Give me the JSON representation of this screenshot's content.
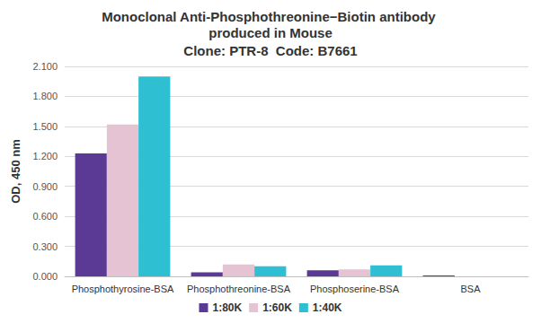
{
  "chart_data": {
    "type": "bar",
    "title": "Monoclonal Anti-Phosphothreonine−Biotin antibody produced in Mouse",
    "subtitle": "Clone: PTR-8  Code: B7661",
    "y_label": "OD, 450 nm",
    "categories": [
      "Phosphothyrosine-BSA",
      "Phosphothreonine-BSA",
      "Phosphoserine-BSA",
      "BSA"
    ],
    "series": [
      {
        "name": "1:80K",
        "color": "#5b3a96",
        "values": [
          1.23,
          0.04,
          0.06,
          0.01
        ]
      },
      {
        "name": "1:60K",
        "color": "#e6c3d3",
        "values": [
          1.52,
          0.12,
          0.07,
          0.0
        ]
      },
      {
        "name": "1:40K",
        "color": "#2ebfd3",
        "values": [
          2.0,
          0.1,
          0.11,
          0.0
        ]
      }
    ],
    "ylim": [
      0,
      2.1
    ],
    "yticks": [
      {
        "value": 0,
        "label": "0.000"
      },
      {
        "value": 0.3,
        "label": "0.300"
      },
      {
        "value": 0.6,
        "label": "0.600"
      },
      {
        "value": 0.9,
        "label": "0.900"
      },
      {
        "value": 1.2,
        "label": "1.200"
      },
      {
        "value": 1.5,
        "label": "1.500"
      },
      {
        "value": 1.8,
        "label": "1.800"
      },
      {
        "value": 2.1,
        "label": "2.100"
      }
    ],
    "grid": true,
    "legend": "bottom"
  }
}
